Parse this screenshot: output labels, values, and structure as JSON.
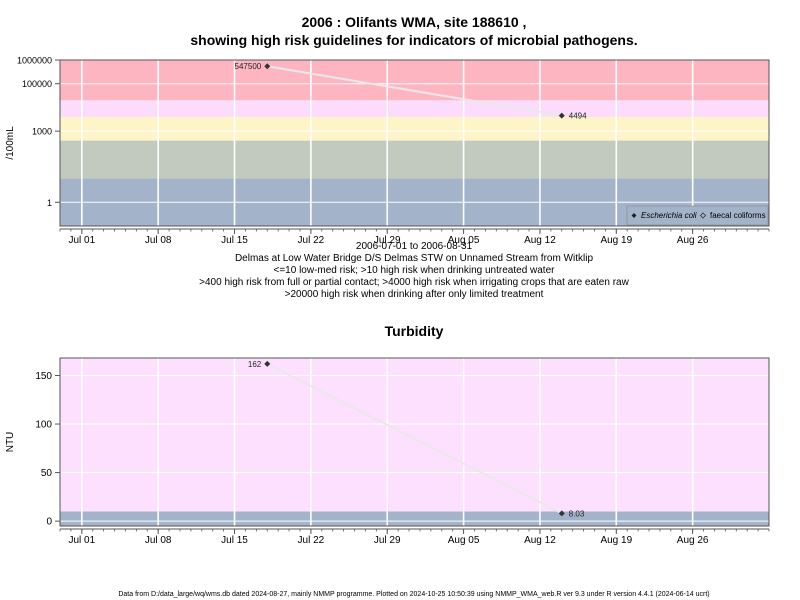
{
  "page": {
    "title_line1": "2006 : Olifants WMA, site 188610 ,",
    "title_line2": "showing high risk guidelines for indicators of microbial pathogens.",
    "footer": "Data from D:/data_large/wq/wms.db dated 2024-08-27, mainly NMMP programme. Plotted on 2024-10-25 10:50:39 using NMMP_WMA_web.R ver 9.3 under R version 4.4.1 (2024-06-14 ucrt)"
  },
  "chart_data": [
    {
      "type": "line",
      "title": "",
      "ylabel": "/100mL",
      "y_scale": "log10",
      "ylim": [
        0.1,
        1000000
      ],
      "y_ticks": [
        "1",
        "1000",
        "100000",
        "1000000"
      ],
      "x_ticks": [
        "Jul 01",
        "Jul 08",
        "Jul 15",
        "Jul 22",
        "Jul 29",
        "Aug 05",
        "Aug 12",
        "Aug 19",
        "Aug 26"
      ],
      "x_tick_dates": [
        "2006-07-01",
        "2006-07-08",
        "2006-07-15",
        "2006-07-22",
        "2006-07-29",
        "2006-08-05",
        "2006-08-12",
        "2006-08-19",
        "2006-08-26"
      ],
      "xlim": [
        "2006-06-29",
        "2006-09-02"
      ],
      "bands": [
        {
          "from": 0.1,
          "to": 10,
          "color": "#a3b3c9"
        },
        {
          "from": 10,
          "to": 400,
          "color": "#c2cabf"
        },
        {
          "from": 400,
          "to": 4000,
          "color": "#fdf5c8"
        },
        {
          "from": 4000,
          "to": 20000,
          "color": "#fbdcfc"
        },
        {
          "from": 20000,
          "to": 1000000,
          "color": "#fdb6c1"
        }
      ],
      "series": [
        {
          "name": "Escherichia coli",
          "x": [
            "2006-07-18",
            "2006-08-14"
          ],
          "values": [
            547500,
            4494
          ],
          "labels": [
            "547500",
            "4494"
          ],
          "color": "#333333"
        }
      ],
      "legend": {
        "position": "bottom-right",
        "entries": [
          "Escherichia coli",
          "faecal coliforms"
        ]
      },
      "annotations": [
        "2006-07-01 to 2006-08-31",
        "Delmas at Low Water Bridge D/S Delmas STW on Unnamed Stream from Witklip",
        "<=10 low-med risk; >10 high risk when drinking untreated water",
        ">400 high risk from full or partial contact; >4000 high risk when irrigating crops that are eaten raw",
        ">20000 high risk when drinking after only limited treatment"
      ]
    },
    {
      "type": "line",
      "title": "Turbidity",
      "ylabel": "NTU",
      "y_scale": "linear",
      "ylim": [
        -5,
        168
      ],
      "y_ticks": [
        "0",
        "50",
        "100",
        "150"
      ],
      "y_tick_values": [
        0,
        50,
        100,
        150
      ],
      "x_ticks": [
        "Jul 01",
        "Jul 08",
        "Jul 15",
        "Jul 22",
        "Jul 29",
        "Aug 05",
        "Aug 12",
        "Aug 19",
        "Aug 26"
      ],
      "x_tick_dates": [
        "2006-07-01",
        "2006-07-08",
        "2006-07-15",
        "2006-07-22",
        "2006-07-29",
        "2006-08-05",
        "2006-08-12",
        "2006-08-19",
        "2006-08-26"
      ],
      "xlim": [
        "2006-06-29",
        "2006-09-02"
      ],
      "bands": [
        {
          "from": -5,
          "to": 10,
          "color": "#a3b3c9"
        },
        {
          "from": 10,
          "to": 168,
          "color": "#fce0fd"
        }
      ],
      "series": [
        {
          "name": "",
          "x": [
            "2006-07-18",
            "2006-08-14"
          ],
          "values": [
            162,
            8.03
          ],
          "labels": [
            "162",
            "8.03"
          ],
          "color": "#333333"
        }
      ]
    }
  ]
}
